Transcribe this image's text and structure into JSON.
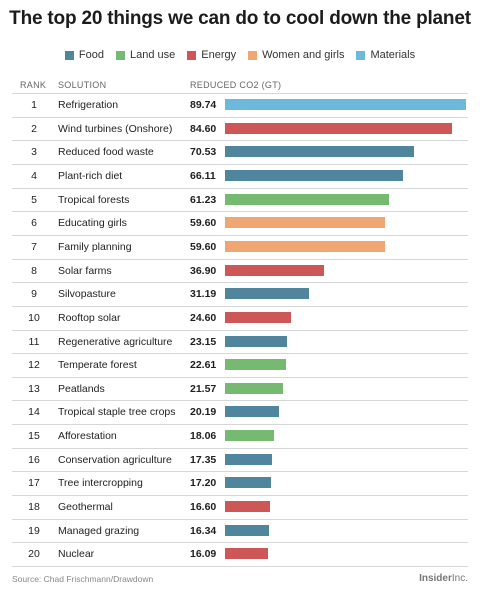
{
  "title": "The top 20 things we can do to cool down the planet",
  "legend": [
    {
      "label": "Food",
      "color": "#4f869d"
    },
    {
      "label": "Land use",
      "color": "#76b971"
    },
    {
      "label": "Energy",
      "color": "#cd5757"
    },
    {
      "label": "Women and girls",
      "color": "#f0a672"
    },
    {
      "label": "Materials",
      "color": "#6cb9dc"
    }
  ],
  "columns": {
    "rank": "RANK",
    "solution": "SOLUTION",
    "value": "REDUCED CO2 (GT)"
  },
  "chart_data": {
    "type": "bar",
    "orientation": "horizontal",
    "title": "The top 20 things we can do to cool down the planet",
    "xlim": [
      0,
      89.74
    ],
    "rows": [
      {
        "rank": "1",
        "solution": "Refrigeration",
        "value": 89.74,
        "label": "89.74",
        "category": "Materials"
      },
      {
        "rank": "2",
        "solution": "Wind turbines (Onshore)",
        "value": 84.6,
        "label": "84.60",
        "category": "Energy"
      },
      {
        "rank": "3",
        "solution": "Reduced food waste",
        "value": 70.53,
        "label": "70.53",
        "category": "Food"
      },
      {
        "rank": "4",
        "solution": "Plant-rich diet",
        "value": 66.11,
        "label": "66.11",
        "category": "Food"
      },
      {
        "rank": "5",
        "solution": "Tropical forests",
        "value": 61.23,
        "label": "61.23",
        "category": "Land use"
      },
      {
        "rank": "6",
        "solution": "Educating girls",
        "value": 59.6,
        "label": "59.60",
        "category": "Women and girls"
      },
      {
        "rank": "7",
        "solution": "Family planning",
        "value": 59.6,
        "label": "59.60",
        "category": "Women and girls"
      },
      {
        "rank": "8",
        "solution": "Solar farms",
        "value": 36.9,
        "label": "36.90",
        "category": "Energy"
      },
      {
        "rank": "9",
        "solution": "Silvopasture",
        "value": 31.19,
        "label": "31.19",
        "category": "Food"
      },
      {
        "rank": "10",
        "solution": "Rooftop solar",
        "value": 24.6,
        "label": "24.60",
        "category": "Energy"
      },
      {
        "rank": "11",
        "solution": "Regenerative agriculture",
        "value": 23.15,
        "label": "23.15",
        "category": "Food"
      },
      {
        "rank": "12",
        "solution": "Temperate forest",
        "value": 22.61,
        "label": "22.61",
        "category": "Land use"
      },
      {
        "rank": "13",
        "solution": "Peatlands",
        "value": 21.57,
        "label": "21.57",
        "category": "Land use"
      },
      {
        "rank": "14",
        "solution": "Tropical staple tree crops",
        "value": 20.19,
        "label": "20.19",
        "category": "Food"
      },
      {
        "rank": "15",
        "solution": "Afforestation",
        "value": 18.06,
        "label": "18.06",
        "category": "Land use"
      },
      {
        "rank": "16",
        "solution": "Conservation agriculture",
        "value": 17.35,
        "label": "17.35",
        "category": "Food"
      },
      {
        "rank": "17",
        "solution": "Tree intercropping",
        "value": 17.2,
        "label": "17.20",
        "category": "Food"
      },
      {
        "rank": "18",
        "solution": "Geothermal",
        "value": 16.6,
        "label": "16.60",
        "category": "Energy"
      },
      {
        "rank": "19",
        "solution": "Managed grazing",
        "value": 16.34,
        "label": "16.34",
        "category": "Food"
      },
      {
        "rank": "20",
        "solution": "Nuclear",
        "value": 16.09,
        "label": "16.09",
        "category": "Energy"
      }
    ]
  },
  "footer": {
    "source": "Source: Chad Frischmann/Drawdown",
    "brand": "Insider",
    "brand_suffix": "Inc."
  }
}
